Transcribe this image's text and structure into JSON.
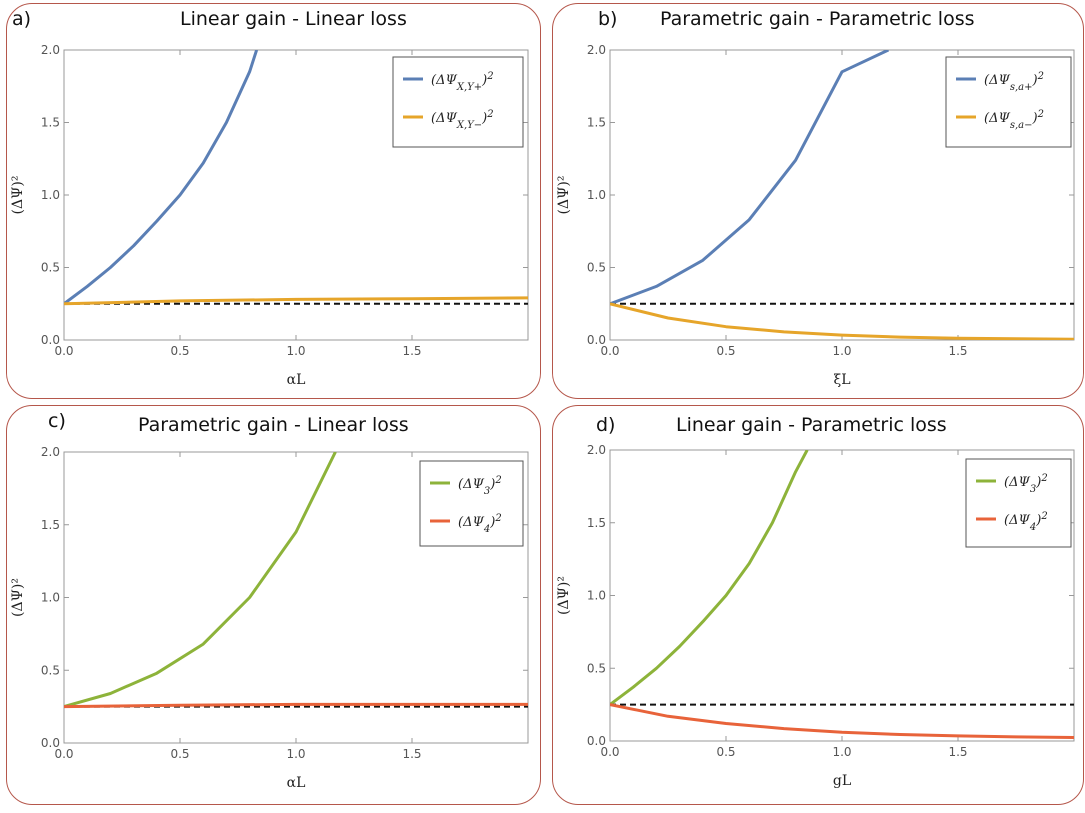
{
  "panels": [
    {
      "label": "a)",
      "title": "Linear gain - Linear loss"
    },
    {
      "label": "b)",
      "title": "Parametric gain - Parametric loss"
    },
    {
      "label": "c)",
      "title": "Parametric gain - Linear loss"
    },
    {
      "label": "d)",
      "title": "Linear gain - Parametric loss"
    }
  ],
  "colors": {
    "blue": "#5b7fb5",
    "orange": "#e6a52a",
    "green": "#8db33a",
    "red": "#e8633a",
    "border": "#b5574b"
  },
  "chart_data": [
    {
      "type": "line",
      "title": "Linear gain - Linear loss",
      "xlabel": "αL",
      "ylabel": "(ΔΨ)²",
      "xlim": [
        0,
        2
      ],
      "ylim": [
        0,
        2
      ],
      "xticks": [
        "0.0",
        "0.5",
        "1.0",
        "1.5"
      ],
      "yticks": [
        "0.0",
        "0.5",
        "1.0",
        "1.5",
        "2.0"
      ],
      "legend_position": "top-right",
      "reference_line": {
        "y": 0.25,
        "style": "dashed"
      },
      "series": [
        {
          "name": "(ΔΨX,Y+)²",
          "color": "#5b7fb5",
          "x": [
            0,
            0.1,
            0.2,
            0.3,
            0.4,
            0.5,
            0.6,
            0.7,
            0.8,
            0.83
          ],
          "y": [
            0.25,
            0.37,
            0.5,
            0.65,
            0.82,
            1.0,
            1.22,
            1.5,
            1.85,
            2.0
          ]
        },
        {
          "name": "(ΔΨX,Y−)²",
          "color": "#e6a52a",
          "x": [
            0,
            0.5,
            1.0,
            1.5,
            2.0
          ],
          "y": [
            0.25,
            0.27,
            0.28,
            0.285,
            0.29
          ]
        }
      ]
    },
    {
      "type": "line",
      "title": "Parametric gain - Parametric loss",
      "xlabel": "ξL",
      "ylabel": "(ΔΨ)²",
      "xlim": [
        0,
        2
      ],
      "ylim": [
        0,
        2
      ],
      "xticks": [
        "0.0",
        "0.5",
        "1.0",
        "1.5"
      ],
      "yticks": [
        "0.0",
        "0.5",
        "1.0",
        "1.5",
        "2.0"
      ],
      "legend_position": "top-right",
      "reference_line": {
        "y": 0.25,
        "style": "dashed"
      },
      "series": [
        {
          "name": "(ΔΨs,a+)²",
          "color": "#5b7fb5",
          "x": [
            0,
            0.2,
            0.4,
            0.6,
            0.8,
            1.0,
            1.2
          ],
          "y": [
            0.25,
            0.37,
            0.55,
            0.83,
            1.24,
            1.85,
            2.0
          ]
        },
        {
          "name": "(ΔΨs,a−)²",
          "color": "#e6a52a",
          "x": [
            0,
            0.25,
            0.5,
            0.75,
            1.0,
            1.25,
            1.5,
            1.75,
            2.0
          ],
          "y": [
            0.25,
            0.152,
            0.092,
            0.056,
            0.034,
            0.02,
            0.012,
            0.008,
            0.005
          ]
        }
      ]
    },
    {
      "type": "line",
      "title": "Parametric gain - Linear loss",
      "xlabel": "αL",
      "ylabel": "(ΔΨ)²",
      "xlim": [
        0,
        2
      ],
      "ylim": [
        0,
        2
      ],
      "xticks": [
        "0.0",
        "0.5",
        "1.0",
        "1.5"
      ],
      "yticks": [
        "0.0",
        "0.5",
        "1.0",
        "1.5",
        "2.0"
      ],
      "legend_position": "top-right",
      "reference_line": {
        "y": 0.25,
        "style": "dashed"
      },
      "series": [
        {
          "name": "(ΔΨ3)²",
          "color": "#8db33a",
          "x": [
            0,
            0.2,
            0.4,
            0.6,
            0.8,
            1.0,
            1.17
          ],
          "y": [
            0.25,
            0.34,
            0.48,
            0.68,
            1.0,
            1.45,
            2.0
          ]
        },
        {
          "name": "(ΔΨ4)²",
          "color": "#e8633a",
          "x": [
            0,
            0.5,
            1.0,
            1.5,
            2.0
          ],
          "y": [
            0.25,
            0.26,
            0.265,
            0.265,
            0.265
          ]
        }
      ]
    },
    {
      "type": "line",
      "title": "Linear gain - Parametric loss",
      "xlabel": "gL",
      "ylabel": "(ΔΨ)²",
      "xlim": [
        0,
        2
      ],
      "ylim": [
        0,
        2
      ],
      "xticks": [
        "0.0",
        "0.5",
        "1.0",
        "1.5"
      ],
      "yticks": [
        "0.0",
        "0.5",
        "1.0",
        "1.5",
        "2.0"
      ],
      "legend_position": "top-right",
      "reference_line": {
        "y": 0.25,
        "style": "dashed"
      },
      "series": [
        {
          "name": "(ΔΨ3)²",
          "color": "#8db33a",
          "x": [
            0,
            0.1,
            0.2,
            0.3,
            0.4,
            0.5,
            0.6,
            0.7,
            0.8,
            0.85
          ],
          "y": [
            0.25,
            0.37,
            0.5,
            0.65,
            0.82,
            1.0,
            1.22,
            1.5,
            1.85,
            2.0
          ]
        },
        {
          "name": "(ΔΨ4)²",
          "color": "#e8633a",
          "x": [
            0,
            0.25,
            0.5,
            0.75,
            1.0,
            1.25,
            1.5,
            1.75,
            2.0
          ],
          "y": [
            0.25,
            0.17,
            0.12,
            0.085,
            0.06,
            0.045,
            0.035,
            0.028,
            0.024
          ]
        }
      ]
    }
  ]
}
